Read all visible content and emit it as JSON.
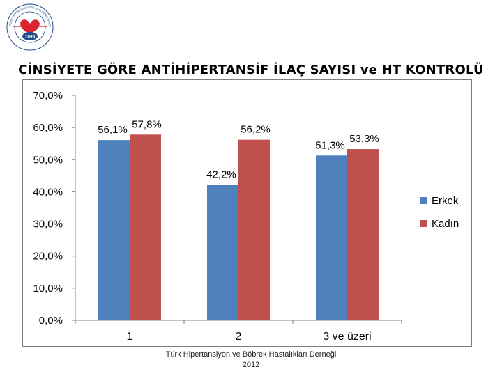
{
  "title": "CİNSİYETE GÖRE ANTİHİPERTANSİF İLAÇ SAYISI ve HT KONTROLÜ",
  "logo": {
    "year": "1995",
    "ring_text": "TÜRK HİPERTANSİYON ve BÖBREK HASTALIKLARI DERNEĞİ"
  },
  "footer": {
    "line1": "Türk Hipertansiyon ve Böbrek Hastalıkları Derneği",
    "line2": "2012"
  },
  "colors": {
    "erkek": "#4f81bd",
    "kadin": "#c0504d",
    "logo_blue": "#1f4e8c",
    "logo_red": "#d7262d"
  },
  "chart_data": {
    "type": "bar",
    "title": "",
    "xlabel": "",
    "ylabel": "",
    "categories": [
      "1",
      "2",
      "3 ve üzeri"
    ],
    "series": [
      {
        "name": "Erkek",
        "values": [
          56.1,
          42.2,
          51.3
        ],
        "labels": [
          "56,1%",
          "42,2%",
          "51,3%"
        ]
      },
      {
        "name": "Kadın",
        "values": [
          57.8,
          56.2,
          53.3
        ],
        "labels": [
          "57,8%",
          "56,2%",
          "53,3%"
        ]
      }
    ],
    "ylim": [
      0,
      70
    ],
    "yticks": [
      0,
      10,
      20,
      30,
      40,
      50,
      60,
      70
    ],
    "ytick_labels": [
      "0,0%",
      "10,0%",
      "20,0%",
      "30,0%",
      "40,0%",
      "50,0%",
      "60,0%",
      "70,0%"
    ],
    "grid": false,
    "legend": "right"
  }
}
